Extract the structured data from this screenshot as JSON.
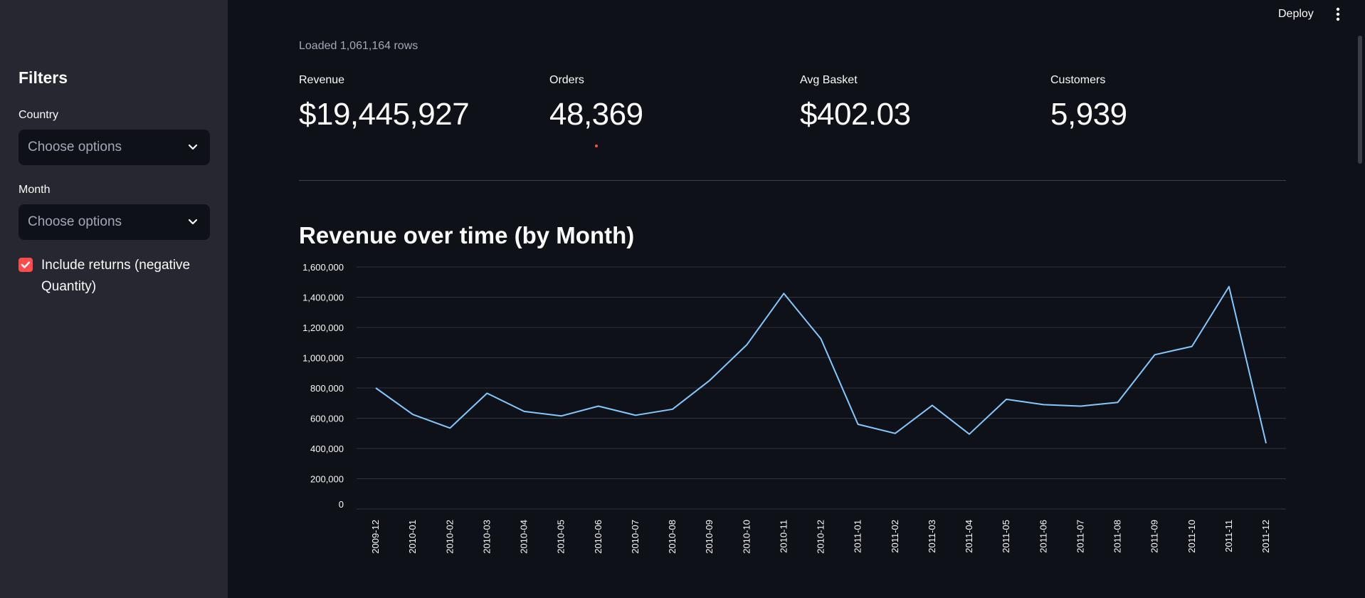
{
  "sidebar": {
    "title": "Filters",
    "country": {
      "label": "Country",
      "placeholder": "Choose options"
    },
    "month": {
      "label": "Month",
      "placeholder": "Choose options"
    },
    "returns": {
      "label": "Include returns (negative Quantity)",
      "checked": true
    }
  },
  "topbar": {
    "deploy_label": "Deploy",
    "menu_icon": "kebab-menu-icon"
  },
  "main": {
    "loaded_text": "Loaded 1,061,164 rows",
    "metrics": [
      {
        "label": "Revenue",
        "value": "$19,445,927"
      },
      {
        "label": "Orders",
        "value": "48,369"
      },
      {
        "label": "Avg Basket",
        "value": "$402.03"
      },
      {
        "label": "Customers",
        "value": "5,939"
      }
    ],
    "chart_title": "Revenue over time (by Month)"
  },
  "colors": {
    "accent": "#ff4b4b",
    "line": "#83c9ff",
    "sidebar_bg": "#262730",
    "main_bg": "#0e1117"
  },
  "chart_data": {
    "type": "line",
    "title": "Revenue over time (by Month)",
    "xlabel": "",
    "ylabel": "",
    "ylim": [
      0,
      1600000
    ],
    "yticks": [
      0,
      200000,
      400000,
      600000,
      800000,
      1000000,
      1200000,
      1400000,
      1600000
    ],
    "ytick_labels": [
      "0",
      "200,000",
      "400,000",
      "600,000",
      "800,000",
      "1,000,000",
      "1,200,000",
      "1,400,000",
      "1,600,000"
    ],
    "x": [
      "2009-12",
      "2010-01",
      "2010-02",
      "2010-03",
      "2010-04",
      "2010-05",
      "2010-06",
      "2010-07",
      "2010-08",
      "2010-09",
      "2010-10",
      "2010-11",
      "2010-12",
      "2011-01",
      "2011-02",
      "2011-03",
      "2011-04",
      "2011-05",
      "2011-06",
      "2011-07",
      "2011-08",
      "2011-09",
      "2011-10",
      "2011-11",
      "2011-12"
    ],
    "series": [
      {
        "values": [
          800000,
          625000,
          535000,
          765000,
          645000,
          615000,
          680000,
          620000,
          660000,
          850000,
          1085000,
          1425000,
          1125000,
          560000,
          500000,
          685000,
          495000,
          725000,
          690000,
          680000,
          705000,
          1020000,
          1075000,
          1470000,
          435000
        ]
      }
    ],
    "grid": true
  }
}
